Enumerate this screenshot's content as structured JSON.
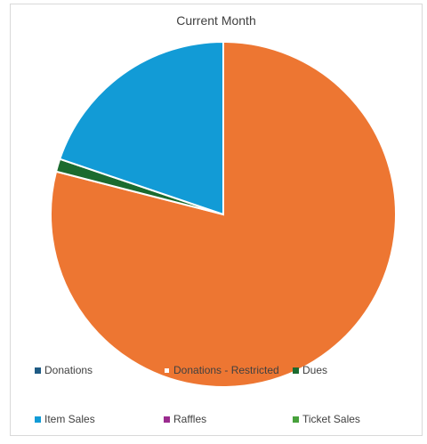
{
  "chart_data": {
    "type": "pie",
    "title": "Current Month",
    "categories": [
      "Donations",
      "Donations - Restricted",
      "Dues",
      "Item Sales",
      "Raffles",
      "Ticket Sales"
    ],
    "values": [
      0,
      79,
      1.2,
      19.8,
      0,
      0
    ],
    "colors": [
      "#1f5b84",
      "#ed7632",
      "#1b6b2f",
      "#129bd6",
      "#9b2c8f",
      "#47a13c"
    ],
    "legend_position": "bottom"
  }
}
